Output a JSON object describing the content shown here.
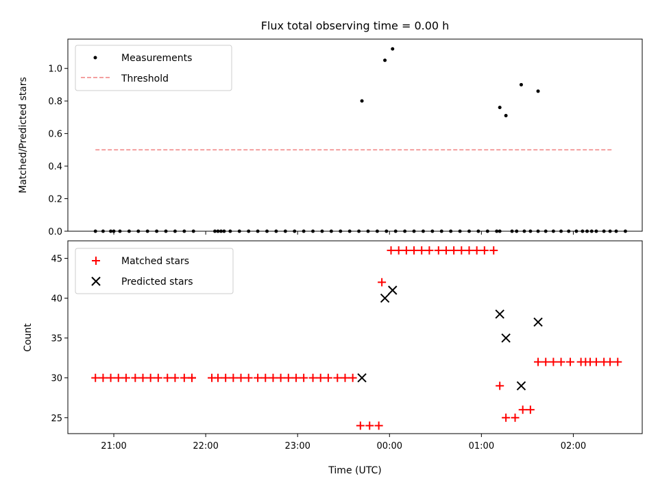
{
  "title": "Flux total observing time = 0.00 h",
  "colors": {
    "measurement": "#000000",
    "threshold": "#f08080",
    "matched": "#ff0000",
    "predicted": "#000000"
  },
  "chart_data": [
    {
      "type": "scatter",
      "ylabel": "Matched/Predicted stars",
      "xlim": [
        "20:30",
        "02:45"
      ],
      "ylim": [
        0,
        1.18
      ],
      "grid": false,
      "legend": "top-left",
      "y_ticks": [
        "0.0",
        "0.2",
        "0.4",
        "0.6",
        "0.8",
        "1.0"
      ],
      "legend_entries": {
        "measurements": "Measurements",
        "threshold": "Threshold"
      },
      "threshold": {
        "value": 0.5,
        "x": [
          "20:48",
          "02:25"
        ]
      },
      "series": [
        {
          "name": "Measurements",
          "x": [
            "20:48",
            "20:53",
            "20:58",
            "21:00",
            "21:04",
            "21:10",
            "21:16",
            "21:22",
            "21:28",
            "21:34",
            "21:40",
            "21:46",
            "21:52",
            "22:06",
            "22:08",
            "22:10",
            "22:12",
            "22:16",
            "22:22",
            "22:28",
            "22:34",
            "22:40",
            "22:46",
            "22:52",
            "22:58",
            "23:04",
            "23:10",
            "23:16",
            "23:22",
            "23:28",
            "23:34",
            "23:40",
            "23:46",
            "23:52",
            "23:58",
            "00:04",
            "00:10",
            "00:16",
            "00:22",
            "00:28",
            "00:34",
            "00:40",
            "00:46",
            "00:52",
            "00:58",
            "01:04",
            "01:10",
            "01:12",
            "01:20",
            "01:23",
            "01:28",
            "01:32",
            "01:37",
            "01:42",
            "01:47",
            "01:52",
            "01:57",
            "02:02",
            "02:06",
            "02:09",
            "02:12",
            "02:15",
            "02:20",
            "02:24",
            "02:28",
            "02:34"
          ],
          "y": [
            0,
            0,
            0,
            0,
            0,
            0,
            0,
            0,
            0,
            0,
            0,
            0,
            0,
            0,
            0,
            0,
            0,
            0,
            0,
            0,
            0,
            0,
            0,
            0,
            0,
            0,
            0,
            0,
            0,
            0,
            0,
            0,
            0,
            0,
            0,
            0,
            0,
            0,
            0,
            0,
            0,
            0,
            0,
            0,
            0,
            0,
            0,
            0,
            0,
            0,
            0,
            0,
            0,
            0,
            0,
            0,
            0,
            0,
            0,
            0,
            0,
            0,
            0,
            0,
            0,
            0
          ],
          "note_points": {
            "x": [
              "23:42",
              "23:57",
              "00:02",
              "01:12",
              "01:16",
              "01:26",
              "01:37"
            ],
            "y": [
              0.8,
              1.05,
              1.12,
              0.76,
              0.71,
              0.9,
              0.86
            ]
          }
        }
      ]
    },
    {
      "type": "scatter",
      "xlabel": "Time (UTC)",
      "ylabel": "Count",
      "xlim": [
        "20:30",
        "02:45"
      ],
      "ylim": [
        23,
        47.2
      ],
      "grid": false,
      "legend": "top-left",
      "x_ticks": [
        "21:00",
        "22:00",
        "23:00",
        "00:00",
        "01:00",
        "02:00"
      ],
      "y_ticks": [
        "25",
        "30",
        "35",
        "40",
        "45"
      ],
      "series": [
        {
          "name": "Matched stars",
          "marker": "+",
          "x": [
            "20:48",
            "20:53",
            "20:58",
            "21:03",
            "21:08",
            "21:14",
            "21:19",
            "21:24",
            "21:29",
            "21:35",
            "21:40",
            "21:46",
            "21:51",
            "21:51",
            "22:04",
            "22:08",
            "22:13",
            "22:18",
            "22:23",
            "22:28",
            "22:34",
            "22:39",
            "22:44",
            "22:49",
            "22:54",
            "22:59",
            "23:04",
            "23:10",
            "23:15",
            "23:20",
            "23:26",
            "23:31",
            "23:36",
            "23:41",
            "23:47",
            "23:53",
            "23:55",
            "00:01",
            "00:06",
            "00:11",
            "00:16",
            "00:21",
            "00:26",
            "00:32",
            "00:37",
            "00:42",
            "00:47",
            "00:52",
            "00:57",
            "01:02",
            "01:08",
            "01:12",
            "01:16",
            "01:22",
            "01:27",
            "01:32",
            "01:37",
            "01:42",
            "01:47",
            "01:52",
            "01:58",
            "02:05",
            "02:08",
            "02:11",
            "02:15",
            "02:20",
            "02:24",
            "02:29"
          ],
          "y": [
            30,
            30,
            30,
            30,
            30,
            30,
            30,
            30,
            30,
            30,
            30,
            30,
            30,
            30,
            30,
            30,
            30,
            30,
            30,
            30,
            30,
            30,
            30,
            30,
            30,
            30,
            30,
            30,
            30,
            30,
            30,
            30,
            30,
            24,
            24,
            24,
            42,
            46,
            46,
            46,
            46,
            46,
            46,
            46,
            46,
            46,
            46,
            46,
            46,
            46,
            46,
            29,
            25,
            25,
            26,
            26,
            32,
            32,
            32,
            32,
            32,
            32,
            32,
            32,
            32,
            32,
            32,
            32
          ]
        },
        {
          "name": "Predicted stars",
          "marker": "x",
          "x": [
            "23:42",
            "23:57",
            "00:02",
            "01:12",
            "01:16",
            "01:26",
            "01:37"
          ],
          "y": [
            30,
            40,
            41,
            38,
            35,
            29,
            37
          ]
        }
      ]
    }
  ]
}
